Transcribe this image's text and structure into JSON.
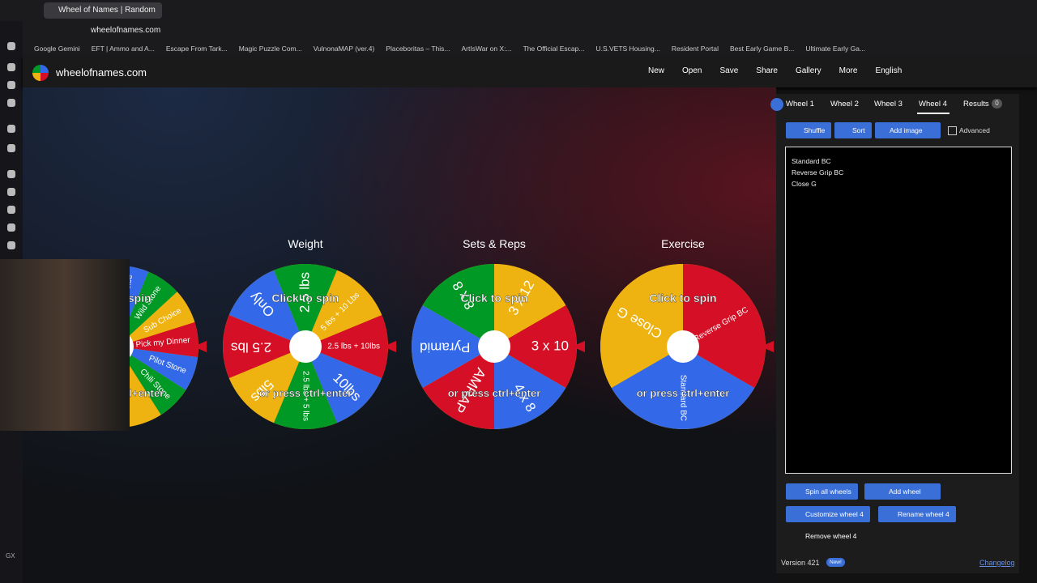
{
  "browser": {
    "tab_title": "Wheel of Names | Random",
    "url": "wheelofnames.com",
    "sidebar_label": "GX",
    "bookmarks": [
      "Google Gemini",
      "EFT | Ammo and A...",
      "Escape From Tark...",
      "Magic Puzzle Com...",
      "VulnonaMAP (ver.4)",
      "Placeboritas – This...",
      "ArtIsWar on X:...",
      "The Official Escap...",
      "U.S.VETS Housing...",
      "Resident Portal",
      "Best Early Game B...",
      "Ultimate Early Ga..."
    ]
  },
  "header": {
    "site": "wheelofnames.com",
    "nav": [
      "New",
      "Open",
      "Save",
      "Share",
      "Gallery",
      "More",
      "English"
    ]
  },
  "wheel_prompts": {
    "spin": "Click to spin",
    "keys": "or press ctrl+enter"
  },
  "wheels": [
    {
      "segments": [
        {
          "label": "Store Choice",
          "color": "#3369e8"
        },
        {
          "label": "Wild Stone",
          "color": "#009925"
        },
        {
          "label": "Sub Choice",
          "color": "#eeb211"
        },
        {
          "label": "Pick my Dinner",
          "color": "#d50f25"
        },
        {
          "label": "Pilot Stone",
          "color": "#3369e8"
        },
        {
          "label": "Chili Stone",
          "color": "#009925"
        }
      ]
    },
    {
      "title": "Weight",
      "segments": [
        {
          "label": "2.5 lbs + 10lbs",
          "color": "#d50f25"
        },
        {
          "label": "10lbs",
          "color": "#3369e8"
        },
        {
          "label": "2.5 lbs + 5 lbs",
          "color": "#009925"
        },
        {
          "label": "5lbs",
          "color": "#eeb211"
        },
        {
          "label": "2.5 lbs",
          "color": "#d50f25"
        },
        {
          "label": "Only",
          "color": "#3369e8"
        },
        {
          "label": "2.5 lbs",
          "color": "#009925"
        },
        {
          "label": "5 lbs + 10 Lbs",
          "color": "#eeb211"
        }
      ]
    },
    {
      "title": "Sets & Reps",
      "segments": [
        {
          "label": "3 x 10",
          "color": "#d50f25"
        },
        {
          "label": "4 x 8",
          "color": "#3369e8"
        },
        {
          "label": "AMRAP",
          "color": "#d50f25"
        },
        {
          "label": "Pyramid",
          "color": "#3369e8"
        },
        {
          "label": "8 x 8",
          "color": "#009925"
        },
        {
          "label": "3 x 12",
          "color": "#eeb211"
        }
      ]
    },
    {
      "title": "Exercise",
      "segments": [
        {
          "label": "Standard BC",
          "color": "#3369e8"
        },
        {
          "label": "Reverse Grip BC",
          "color": "#d50f25"
        },
        {
          "label": "Close G",
          "color": "#eeb211"
        }
      ]
    }
  ],
  "panel": {
    "tabs": [
      "Wheel 1",
      "Wheel 2",
      "Wheel 3",
      "Wheel 4",
      "Results"
    ],
    "results_count": 0,
    "tools": [
      "Shuffle",
      "Sort",
      "Add image",
      "Advanced"
    ],
    "entries": [
      "Standard BC",
      "Reverse Grip BC",
      "Close G"
    ],
    "actions": [
      "Spin all wheels",
      "Add wheel",
      "Customize wheel 4",
      "Rename wheel 4",
      "Remove wheel 4"
    ],
    "version": "Version 421",
    "badge": "New!",
    "changelog": "Changelog"
  }
}
